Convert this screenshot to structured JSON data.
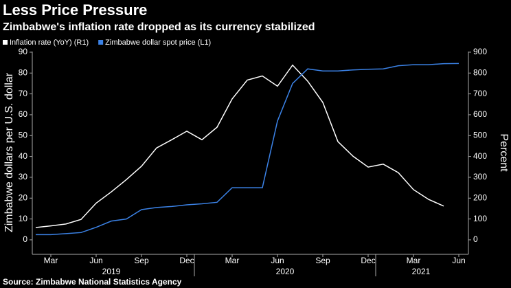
{
  "chart_data": {
    "type": "line",
    "title": "Less Price Pressure",
    "subtitle": "Zimbabwe's inflation rate dropped as its currency stabilized",
    "ylabel": "Zimbabwe dollars per U.S. dollar",
    "y2label": "Percent",
    "source": "Source: Zimbabwe National Statistics Agency",
    "x": [
      "2019-02",
      "2019-03",
      "2019-04",
      "2019-05",
      "2019-06",
      "2019-07",
      "2019-08",
      "2019-09",
      "2019-10",
      "2019-11",
      "2019-12",
      "2020-01",
      "2020-02",
      "2020-03",
      "2020-04",
      "2020-05",
      "2020-06",
      "2020-07",
      "2020-08",
      "2020-09",
      "2020-10",
      "2020-11",
      "2020-12",
      "2021-01",
      "2021-02",
      "2021-03",
      "2021-04",
      "2021-05",
      "2021-06"
    ],
    "xlim": [
      "2019-02",
      "2021-06"
    ],
    "xticks": [
      {
        "value": "2019-03",
        "label": "Mar"
      },
      {
        "value": "2019-06",
        "label": "Jun"
      },
      {
        "value": "2019-09",
        "label": "Sep"
      },
      {
        "value": "2019-12",
        "label": "Dec"
      },
      {
        "value": "2020-03",
        "label": "Mar"
      },
      {
        "value": "2020-06",
        "label": "Jun"
      },
      {
        "value": "2020-09",
        "label": "Sep"
      },
      {
        "value": "2020-12",
        "label": "Dec"
      },
      {
        "value": "2021-03",
        "label": "Mar"
      },
      {
        "value": "2021-06",
        "label": "Jun"
      }
    ],
    "years": [
      "2019",
      "2020",
      "2021"
    ],
    "ylim": [
      -2,
      88
    ],
    "yticks": [
      0,
      10,
      20,
      30,
      40,
      50,
      60,
      70,
      80,
      90
    ],
    "y2lim": [
      -20,
      880
    ],
    "y2ticks": [
      0,
      100,
      200,
      300,
      400,
      500,
      600,
      700,
      800,
      900
    ],
    "series": [
      {
        "name": "Inflation rate (YoY) (R1)",
        "color": "#ffffff",
        "axis": "y2",
        "values": [
          59,
          67,
          76,
          98,
          176,
          230,
          289,
          353,
          441,
          480,
          521,
          480,
          540,
          676,
          766,
          786,
          737,
          838,
          761,
          659,
          471,
          401,
          349,
          363,
          322,
          241,
          194,
          162,
          null
        ]
      },
      {
        "name": "Zimbabwe dollar spot price (L1)",
        "color": "#3b82e6",
        "values": [
          2.5,
          2.5,
          3,
          3.5,
          6,
          9,
          10,
          14.5,
          15.5,
          16,
          16.8,
          17.3,
          18,
          25,
          25,
          25,
          57,
          75,
          82,
          81,
          81,
          81.5,
          81.8,
          82,
          83.5,
          84,
          84,
          84.5,
          84.6
        ]
      }
    ]
  }
}
